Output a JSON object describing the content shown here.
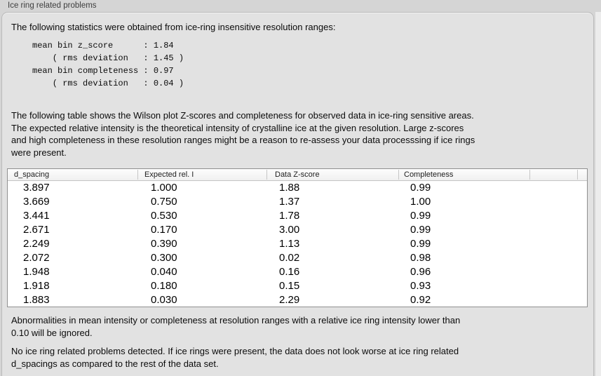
{
  "window": {
    "title": "Ice ring related problems"
  },
  "panel": {
    "intro": "The following statistics were obtained from ice-ring insensitive resolution ranges:",
    "stats_block": "mean bin z_score      : 1.84\n    ( rms deviation   : 1.45 )\nmean bin completeness : 0.97\n    ( rms deviation   : 0.04 )",
    "stats": {
      "mean_bin_z_score": "1.84",
      "mean_bin_z_score_rms_deviation": "1.45",
      "mean_bin_completeness": "0.97",
      "mean_bin_completeness_rms_deviation": "0.04"
    },
    "table_description": "The following table shows the Wilson plot Z-scores and completeness for observed data in ice-ring sensitive areas.\nThe expected relative intensity is the theoretical intensity of crystalline ice at the given resolution. Large z-scores\nand high completeness in these resolution ranges might be a reason to re-assess your data processsing if ice rings\nwere present.",
    "ignore_note": "Abnormalities in mean intensity or completeness at resolution ranges with a relative ice ring intensity lower than\n0.10 will be ignored.",
    "conclusion": "No ice ring related problems detected. If ice rings were present, the data does not look worse at ice ring related\nd_spacings as compared to the rest of the data set."
  },
  "table": {
    "columns": [
      "d_spacing",
      "Expected rel. I",
      "Data Z-score",
      "Completeness"
    ],
    "rows": [
      [
        "3.897",
        "1.000",
        "1.88",
        "0.99"
      ],
      [
        "3.669",
        "0.750",
        "1.37",
        "1.00"
      ],
      [
        "3.441",
        "0.530",
        "1.78",
        "0.99"
      ],
      [
        "2.671",
        "0.170",
        "3.00",
        "0.99"
      ],
      [
        "2.249",
        "0.390",
        "1.13",
        "0.99"
      ],
      [
        "2.072",
        "0.300",
        "0.02",
        "0.98"
      ],
      [
        "1.948",
        "0.040",
        "0.16",
        "0.96"
      ],
      [
        "1.918",
        "0.180",
        "0.15",
        "0.93"
      ],
      [
        "1.883",
        "0.030",
        "2.29",
        "0.92"
      ]
    ]
  },
  "colors": {
    "window_bg": "#d5d5d5",
    "panel_bg": "#e2e2e2",
    "panel_border": "#bababa",
    "table_border": "#909090",
    "table_header_bg": "#f5f5f5",
    "text": "#0b0b0b"
  }
}
